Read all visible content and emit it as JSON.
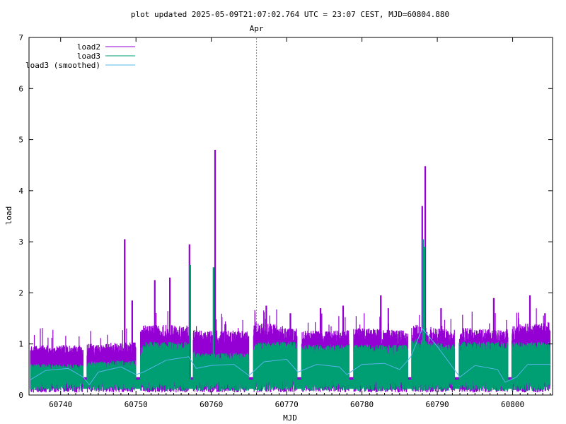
{
  "chart_data": {
    "type": "line",
    "title": "plot updated 2025-05-09T21:07:02.764 UTC = 23:07 CEST, MJD=60804.880",
    "xlabel": "MJD",
    "ylabel": "load",
    "xlim": [
      60735.8,
      60805.3
    ],
    "ylim": [
      0,
      7
    ],
    "xticks": [
      60740,
      60750,
      60760,
      60770,
      60780,
      60790,
      60800
    ],
    "yticks": [
      0,
      1,
      2,
      3,
      4,
      5,
      6,
      7
    ],
    "legend_position": "top-left",
    "marker": {
      "label": "Apr",
      "x": 60766
    },
    "series": [
      {
        "name": "load2",
        "color": "#9400d3",
        "baseline": [
          [
            60736,
            0.85
          ],
          [
            60743,
            0.85
          ],
          [
            60744,
            0.88
          ],
          [
            60750,
            0.9
          ],
          [
            60751,
            1.2
          ],
          [
            60757,
            1.2
          ],
          [
            60758,
            1.1
          ],
          [
            60765,
            1.1
          ],
          [
            60766,
            1.25
          ],
          [
            60771,
            1.15
          ],
          [
            60772,
            1.1
          ],
          [
            60778,
            1.1
          ],
          [
            60779,
            1.15
          ],
          [
            60786,
            1.1
          ],
          [
            60787,
            1.2
          ],
          [
            60792,
            1.1
          ],
          [
            60793,
            1.15
          ],
          [
            60799,
            1.1
          ],
          [
            60800,
            1.2
          ],
          [
            60805,
            1.25
          ]
        ],
        "spikes": [
          [
            60748.5,
            3.05
          ],
          [
            60749.5,
            1.85
          ],
          [
            60752.5,
            2.25
          ],
          [
            60754.5,
            2.3
          ],
          [
            60757.1,
            2.95
          ],
          [
            60760.5,
            4.8
          ],
          [
            60767.3,
            1.75
          ],
          [
            60770.5,
            1.6
          ],
          [
            60774.5,
            1.7
          ],
          [
            60777.5,
            1.75
          ],
          [
            60782.5,
            1.95
          ],
          [
            60783.5,
            1.7
          ],
          [
            60788,
            3.7
          ],
          [
            60788.4,
            4.48
          ],
          [
            60790.5,
            1.7
          ],
          [
            60797.5,
            1.9
          ],
          [
            60802.3,
            1.95
          ],
          [
            60804.3,
            1.6
          ]
        ]
      },
      {
        "name": "load3",
        "color": "#009e73",
        "baseline": [
          [
            60736,
            0.55
          ],
          [
            60743,
            0.55
          ],
          [
            60744,
            0.6
          ],
          [
            60750,
            0.62
          ],
          [
            60751,
            0.95
          ],
          [
            60757,
            0.95
          ],
          [
            60758,
            0.75
          ],
          [
            60765,
            0.75
          ],
          [
            60766,
            0.95
          ],
          [
            60771,
            0.95
          ],
          [
            60772,
            0.9
          ],
          [
            60778,
            0.9
          ],
          [
            60779,
            0.9
          ],
          [
            60786,
            0.9
          ],
          [
            60787,
            1.0
          ],
          [
            60792,
            0.9
          ],
          [
            60793,
            0.95
          ],
          [
            60799,
            0.95
          ],
          [
            60800,
            0.95
          ],
          [
            60805,
            0.95
          ]
        ],
        "spikes": [
          [
            60757.2,
            2.55
          ],
          [
            60760.3,
            2.5
          ],
          [
            60788.1,
            3.05
          ],
          [
            60788.3,
            2.9
          ]
        ]
      },
      {
        "name": "load3 (smoothed)",
        "color": "#56b4e9",
        "points": [
          [
            60736,
            0.3
          ],
          [
            60738,
            0.48
          ],
          [
            60741,
            0.52
          ],
          [
            60743,
            0.35
          ],
          [
            60743.8,
            0.2
          ],
          [
            60745,
            0.45
          ],
          [
            60748,
            0.55
          ],
          [
            60750,
            0.4
          ],
          [
            60751,
            0.45
          ],
          [
            60754,
            0.68
          ],
          [
            60757,
            0.75
          ],
          [
            60758,
            0.52
          ],
          [
            60760,
            0.58
          ],
          [
            60763,
            0.6
          ],
          [
            60765,
            0.38
          ],
          [
            60767,
            0.65
          ],
          [
            60770,
            0.7
          ],
          [
            60771.5,
            0.45
          ],
          [
            60774,
            0.6
          ],
          [
            60777,
            0.55
          ],
          [
            60778,
            0.4
          ],
          [
            60780,
            0.6
          ],
          [
            60783,
            0.62
          ],
          [
            60785,
            0.5
          ],
          [
            60786.5,
            0.75
          ],
          [
            60788,
            1.3
          ],
          [
            60790,
            0.95
          ],
          [
            60792,
            0.55
          ],
          [
            60793,
            0.35
          ],
          [
            60795,
            0.58
          ],
          [
            60798,
            0.5
          ],
          [
            60799,
            0.25
          ],
          [
            60800.5,
            0.35
          ],
          [
            60802,
            0.6
          ],
          [
            60805,
            0.6
          ]
        ]
      }
    ]
  }
}
